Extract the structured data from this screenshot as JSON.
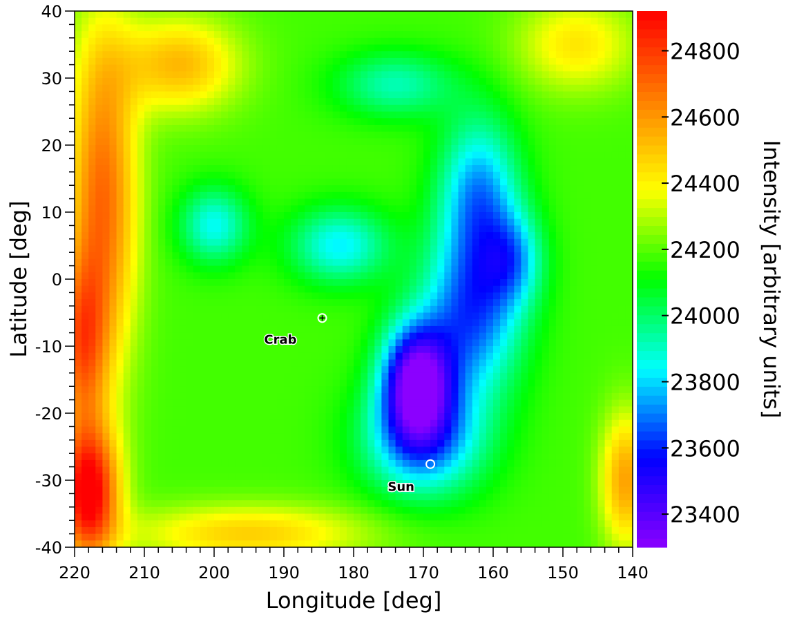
{
  "chart_data": {
    "type": "heatmap",
    "xlabel": "Longitude [deg]",
    "ylabel": "Latitude [deg]",
    "colorbar_label": "Intensity [arbitrary units]",
    "xlim": [
      220,
      140
    ],
    "ylim": [
      -40,
      40
    ],
    "x_ticks": [
      220,
      210,
      200,
      190,
      180,
      170,
      160,
      150,
      140
    ],
    "y_ticks": [
      40,
      30,
      20,
      10,
      0,
      -10,
      -20,
      -30,
      -40
    ],
    "x_tick_labels": [
      "220",
      "210",
      "200",
      "190",
      "180",
      "170",
      "160",
      "150",
      "140"
    ],
    "y_tick_labels": [
      "40",
      "30",
      "20",
      "10",
      "0",
      "-10",
      "-20",
      "-30",
      "-40"
    ],
    "colorbar_range": [
      23300,
      24920
    ],
    "colorbar_ticks": [
      24800,
      24600,
      24400,
      24200,
      24000,
      23800,
      23600,
      23400
    ],
    "colorbar_tick_labels": [
      "24800",
      "24600",
      "24400",
      "24200",
      "24000",
      "23800",
      "23600",
      "23400"
    ],
    "colormap": [
      "#8b00ff",
      "#0000ff",
      "#00ffff",
      "#00ff00",
      "#ffff00",
      "#ff8000",
      "#ff0000"
    ],
    "base_intensity": 24180,
    "features": [
      {
        "lon": 171,
        "lat": -15,
        "amp": -820,
        "sigma_lon": 3.5,
        "sigma_lat": 6
      },
      {
        "lon": 170,
        "lat": -24,
        "amp": -480,
        "sigma_lon": 6,
        "sigma_lat": 6
      },
      {
        "lon": 163,
        "lat": -5,
        "amp": -520,
        "sigma_lon": 5,
        "sigma_lat": 9
      },
      {
        "lon": 162,
        "lat": 13,
        "amp": -430,
        "sigma_lon": 4,
        "sigma_lat": 8
      },
      {
        "lon": 157,
        "lat": 3,
        "amp": -300,
        "sigma_lon": 3,
        "sigma_lat": 5
      },
      {
        "lon": 182,
        "lat": 5,
        "amp": -350,
        "sigma_lon": 5,
        "sigma_lat": 4
      },
      {
        "lon": 200,
        "lat": 8,
        "amp": -330,
        "sigma_lon": 3.5,
        "sigma_lat": 4
      },
      {
        "lon": 174,
        "lat": 29,
        "amp": -260,
        "sigma_lon": 6,
        "sigma_lat": 3.5
      },
      {
        "lon": 216,
        "lat": 12,
        "amp": 520,
        "sigma_lon": 3.5,
        "sigma_lat": 18
      },
      {
        "lon": 218,
        "lat": -32,
        "amp": 780,
        "sigma_lon": 3,
        "sigma_lat": 7
      },
      {
        "lon": 219,
        "lat": -10,
        "amp": 450,
        "sigma_lon": 2.5,
        "sigma_lat": 9
      },
      {
        "lon": 141,
        "lat": -30,
        "amp": 400,
        "sigma_lon": 2.5,
        "sigma_lat": 7
      },
      {
        "lon": 205,
        "lat": 32,
        "amp": 350,
        "sigma_lon": 6,
        "sigma_lat": 5
      },
      {
        "lon": 195,
        "lat": -38,
        "amp": 300,
        "sigma_lon": 12,
        "sigma_lat": 3
      },
      {
        "lon": 148,
        "lat": 35,
        "amp": 250,
        "sigma_lon": 6,
        "sigma_lat": 5
      }
    ],
    "annotations": [
      {
        "label": "Crab",
        "lon": 184.5,
        "lat": -5.8,
        "marker": "circle-plus",
        "label_lon": 190.5,
        "label_lat": -9
      }
    ],
    "sun_annotation": {
      "label": "Sun",
      "lon": 169,
      "lat": -27.6,
      "marker": "circle",
      "label_lon": 173.2,
      "label_lat": -31
    }
  }
}
